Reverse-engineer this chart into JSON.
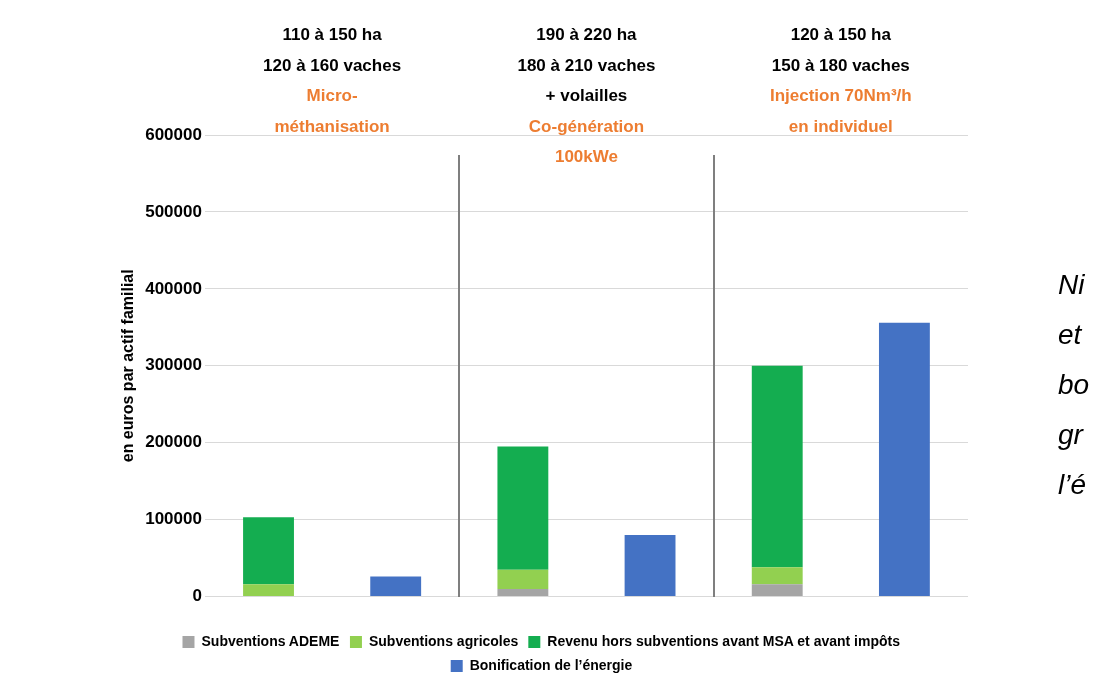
{
  "chart_data": {
    "type": "bar",
    "stacked": true,
    "ylabel": "en euros par actif familial",
    "categories": [
      null,
      null,
      null,
      null,
      null,
      null
    ],
    "series": [
      {
        "name": "Subventions ADEME",
        "color": "#a5a5a5",
        "values": [
          0,
          0,
          10000,
          0,
          16000,
          0
        ]
      },
      {
        "name": "Subventions agricoles",
        "color": "#92d050",
        "values": [
          16000,
          0,
          25000,
          0,
          22000,
          0
        ]
      },
      {
        "name": "Revenu hors subventions avant MSA et avant impôts",
        "color": "#14ad50",
        "values": [
          87000,
          0,
          160000,
          0,
          262000,
          0
        ]
      },
      {
        "name": "Bonification de l’énergie",
        "color": "#4472c4",
        "values": [
          0,
          26000,
          0,
          80000,
          0,
          356000
        ]
      }
    ],
    "ylim": [
      0,
      600000
    ],
    "yticks": [
      0,
      100000,
      200000,
      300000,
      400000,
      500000,
      600000
    ],
    "grid": "y",
    "legend": "bottom",
    "annotations": [
      "110 à 150 ha\n120 à 160 vaches",
      "Micro-\nméthanisation",
      "190 à 220 ha\n180 à 210 vaches\n+ volailles",
      "Co-génération\n100kWe",
      "120 à 150 ha\n150 à 180 vaches",
      "Injection 70Nm³/h\nen individuel",
      "Ni\net\nbo\ngr\nl’é"
    ]
  }
}
